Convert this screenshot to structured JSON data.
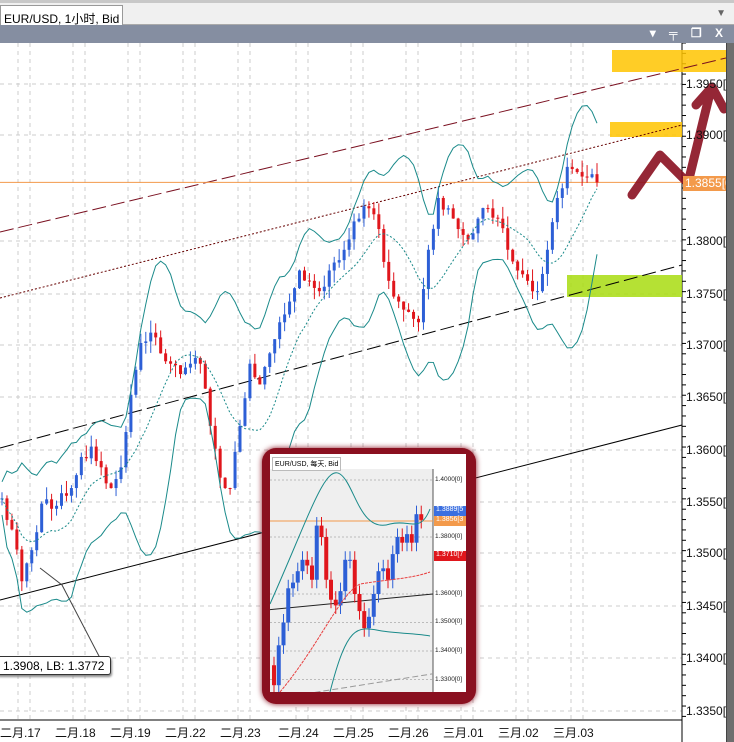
{
  "tab": {
    "title": "EUR/USD, 1小时, Bid",
    "menu_icon": "triangle-down-icon"
  },
  "panel": {
    "icons": [
      "dropdown-icon",
      "pin-icon",
      "undock-icon",
      "close-icon"
    ],
    "glyphs": "▾ ╤ ❐ X"
  },
  "price_axis": [
    "1.3950[0]",
    "1.3900[0]",
    "1.3800[0]",
    "1.3750[0]",
    "1.3700[0]",
    "1.3650[0]",
    "1.3600[0]",
    "1.3550[0]",
    "1.3500[0]",
    "1.3450[0]",
    "1.3400[0]",
    "1.3350[0]"
  ],
  "current_price": "1.3855[0]",
  "date_axis": [
    "二月.17",
    "二月.18",
    "二月.19",
    "二月.22",
    "二月.23",
    "二月.24",
    "二月.25",
    "二月.26",
    "三月.01",
    "三月.02",
    "三月.03"
  ],
  "tooltip": "1.3908, LB: 1.3772",
  "colors": {
    "bull": "#2d5fd6",
    "bear": "#e0161c",
    "band": "#1a8a8a",
    "current": "#f39a4b",
    "annotation": "#8a1020",
    "highlight_yellow": "#ffc400",
    "highlight_green": "#a8dc10"
  },
  "chart_data": {
    "type": "candlestick",
    "ylim": [
      1.333,
      1.399
    ],
    "closes": [
      1.355,
      1.352,
      1.347,
      1.35,
      1.3545,
      1.354,
      1.3555,
      1.356,
      1.359,
      1.36,
      1.358,
      1.356,
      1.358,
      1.365,
      1.37,
      1.371,
      1.369,
      1.368,
      1.367,
      1.368,
      1.368,
      1.362,
      1.357,
      1.356,
      1.362,
      1.368,
      1.366,
      1.369,
      1.372,
      1.374,
      1.377,
      1.376,
      1.375,
      1.377,
      1.378,
      1.38,
      1.382,
      1.383,
      1.381,
      1.376,
      1.374,
      1.373,
      1.372,
      1.379,
      1.384,
      1.383,
      1.381,
      1.38,
      1.382,
      1.383,
      1.382,
      1.379,
      1.377,
      1.376,
      1.375,
      1.379,
      1.384,
      1.387,
      1.3865,
      1.386,
      1.3855
    ]
  },
  "inset": {
    "title": "EUR/USD, 每天, Bid",
    "axis": [
      "1.4000[0]",
      "1.3800[0]",
      "1.3600[0]",
      "1.3500[0]",
      "1.3400[0]",
      "1.3300[0]"
    ],
    "badges": [
      {
        "text": "1.3889[5",
        "color": "#3b6fe0"
      },
      {
        "text": "1.3856[3",
        "color": "#f39a4b"
      },
      {
        "text": "1.3710[7",
        "color": "#e0161c"
      }
    ],
    "closes": [
      1.328,
      1.342,
      1.35,
      1.362,
      1.364,
      1.368,
      1.372,
      1.37,
      1.365,
      1.384,
      1.38,
      1.365,
      1.358,
      1.356,
      1.361,
      1.372,
      1.372,
      1.36,
      1.354,
      1.348,
      1.352,
      1.36,
      1.368,
      1.369,
      1.365,
      1.374,
      1.38,
      1.378,
      1.381,
      1.378,
      1.388,
      1.386
    ]
  }
}
